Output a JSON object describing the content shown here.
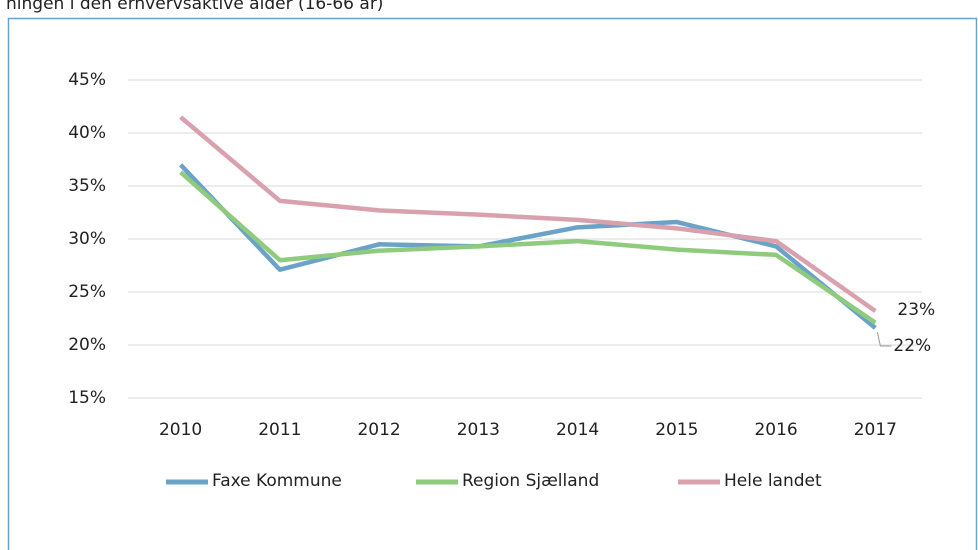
{
  "chart_data": {
    "type": "line",
    "title": "ningen i den erhvervsaktive alder (16-66 år)",
    "categories": [
      "2010",
      "2011",
      "2012",
      "2013",
      "2014",
      "2015",
      "2016",
      "2017"
    ],
    "series": [
      {
        "name": "Faxe Kommune",
        "color": "#6aa2c8",
        "values": [
          37.0,
          27.1,
          29.5,
          29.3,
          31.1,
          31.6,
          29.3,
          21.6
        ],
        "value_labels": [
          null,
          null,
          null,
          null,
          null,
          null,
          null,
          "22%"
        ]
      },
      {
        "name": "Region Sjælland",
        "color": "#8ecb7c",
        "values": [
          36.3,
          28.0,
          28.9,
          29.3,
          29.8,
          29.0,
          28.5,
          22.1
        ]
      },
      {
        "name": "Hele landet",
        "color": "#d9a1ae",
        "values": [
          41.5,
          33.6,
          32.7,
          32.3,
          31.8,
          31.0,
          29.8,
          23.2
        ],
        "value_labels": [
          null,
          null,
          null,
          null,
          null,
          null,
          null,
          "23%"
        ]
      }
    ],
    "ylim": [
      15,
      45
    ],
    "yticks": [
      {
        "value": 15,
        "label": "15%"
      },
      {
        "value": 20,
        "label": "20%"
      },
      {
        "value": 25,
        "label": "25%"
      },
      {
        "value": 30,
        "label": "30%"
      },
      {
        "value": 35,
        "label": "35%"
      },
      {
        "value": 40,
        "label": "40%"
      },
      {
        "value": 45,
        "label": "45%"
      }
    ],
    "grid": true,
    "legend": "bottom"
  }
}
